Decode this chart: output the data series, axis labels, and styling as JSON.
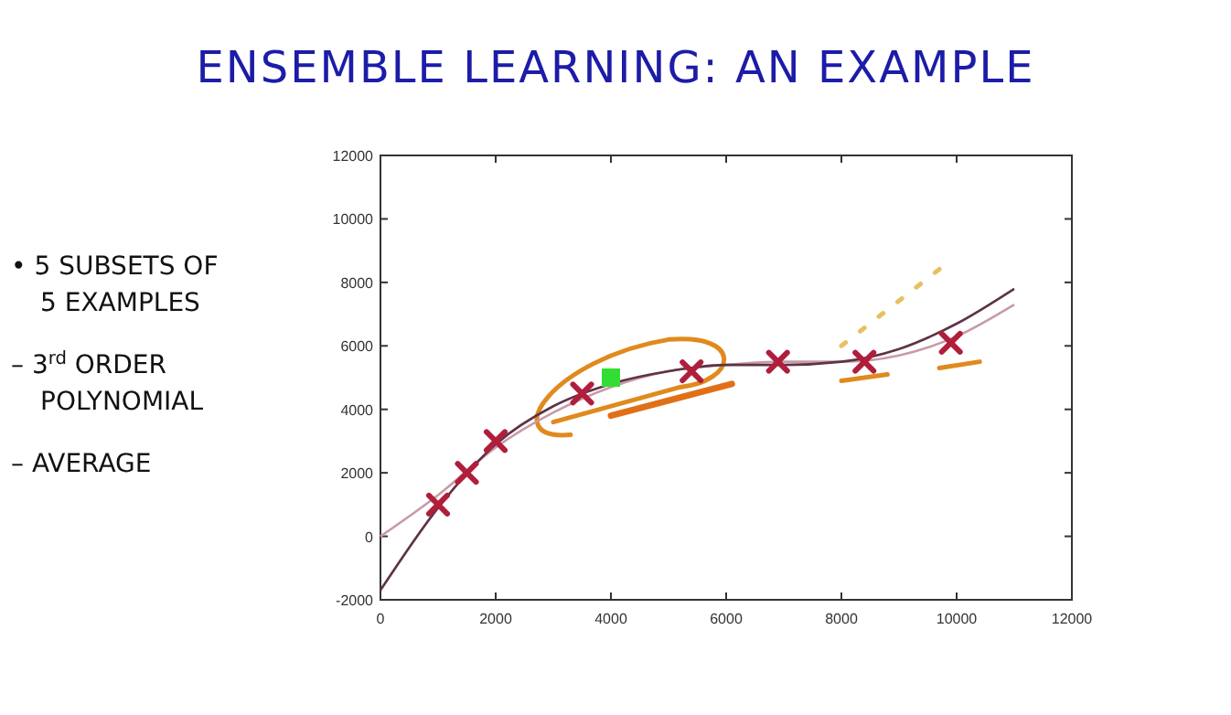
{
  "chart_data": {
    "type": "scatter",
    "title": "ENSEMBLE LEARNING: AN EXAMPLE",
    "annotations": [
      "• 5 SUBSETS OF 5 EXAMPLES",
      "– 3$^{rd}$ ORDER POLYNOMIAL",
      "– AVERAGE"
    ],
    "xlim": [
      0,
      12000
    ],
    "xticks": [
      0,
      2000,
      4000,
      6000,
      8000,
      10000,
      12000
    ],
    "ylim": [
      -2000,
      12000
    ],
    "yticks": [
      -2000,
      0,
      2000,
      4000,
      6000,
      8000,
      10000,
      12000
    ],
    "grid": false,
    "series": [
      {
        "type": "line",
        "color": "#c99aa8",
        "line_style": "solid",
        "x": [
          0,
          1000,
          2000,
          3000,
          4000,
          5000,
          6000,
          7000,
          8000,
          9000,
          10000,
          11000
        ],
        "values": [
          0,
          1300,
          2800,
          3900,
          4700,
          5200,
          5400,
          5500,
          5500,
          5700,
          6300,
          7300
        ]
      },
      {
        "type": "line",
        "color": "#5e3346",
        "line_style": "solid",
        "x": [
          0,
          1000,
          2000,
          3000,
          4000,
          5000,
          6000,
          7000,
          8000,
          9000,
          10000,
          11000
        ],
        "values": [
          -1700,
          900,
          2900,
          4100,
          4800,
          5200,
          5400,
          5400,
          5500,
          5900,
          6700,
          7800
        ]
      },
      {
        "color": "#b01e3c",
        "marker": "cross",
        "x": [
          1000,
          1500,
          2000,
          3500,
          5400,
          6900,
          8400,
          9900
        ],
        "values": [
          1000,
          2000,
          3000,
          4500,
          5200,
          5500,
          5500,
          6100
        ]
      },
      {
        "color": "#33dd33",
        "marker": "square",
        "x": [
          4000
        ],
        "values": [
          5000
        ]
      }
    ]
  }
}
